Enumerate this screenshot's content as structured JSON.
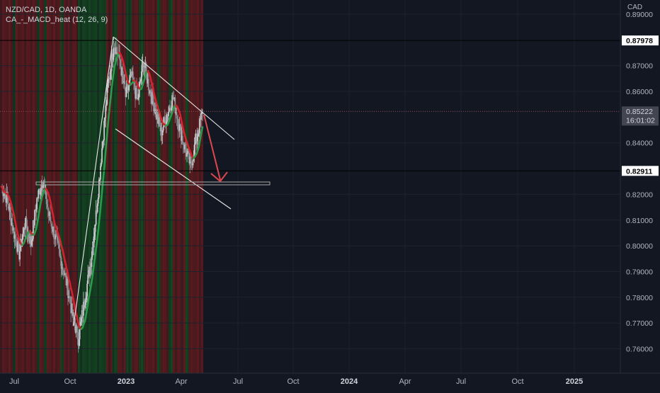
{
  "legend": {
    "symbol": "NZD/CAD, 1D, OANDA",
    "indicator": "CA_-_MACD_heat (12, 26, 9)"
  },
  "currency_label": "CAD",
  "chart_data": {
    "type": "line",
    "x_ticks": [
      "Jul",
      "Oct",
      "2023",
      "Apr",
      "Jul",
      "Oct",
      "2024",
      "Apr",
      "Jul",
      "Oct",
      "2025"
    ],
    "y_ticks": [
      "0.89000",
      "0.87000",
      "0.86000",
      "0.84000",
      "0.82000",
      "0.81000",
      "0.80000",
      "0.79000",
      "0.78000",
      "0.77000",
      "0.76000"
    ],
    "ylim": [
      0.754,
      0.8915
    ],
    "price_levels": [
      {
        "label": "0.87978",
        "value": 0.87978,
        "style": "black"
      },
      {
        "label": "0.85222",
        "value": 0.85222,
        "style": "current"
      },
      {
        "label": "0.82911",
        "value": 0.82911,
        "style": "black"
      }
    ],
    "current_countdown": "16:01:02",
    "series": [
      {
        "values": [
          0.823,
          0.818,
          0.806,
          0.797,
          0.809,
          0.801,
          0.818,
          0.826,
          0.812,
          0.804,
          0.795,
          0.786,
          0.773,
          0.764,
          0.778,
          0.792,
          0.812,
          0.838,
          0.862,
          0.879,
          0.872,
          0.858,
          0.866,
          0.856,
          0.872,
          0.861,
          0.853,
          0.844,
          0.851,
          0.858,
          0.847,
          0.838,
          0.831,
          0.842,
          0.852
        ]
      }
    ]
  },
  "colors": {
    "bg": "#131722",
    "heat_red": "#5a1a1e",
    "heat_green": "#14431f",
    "ma_red": "#d0242e",
    "ma_green": "#2c9a4b",
    "arrow": "#e0474c"
  }
}
